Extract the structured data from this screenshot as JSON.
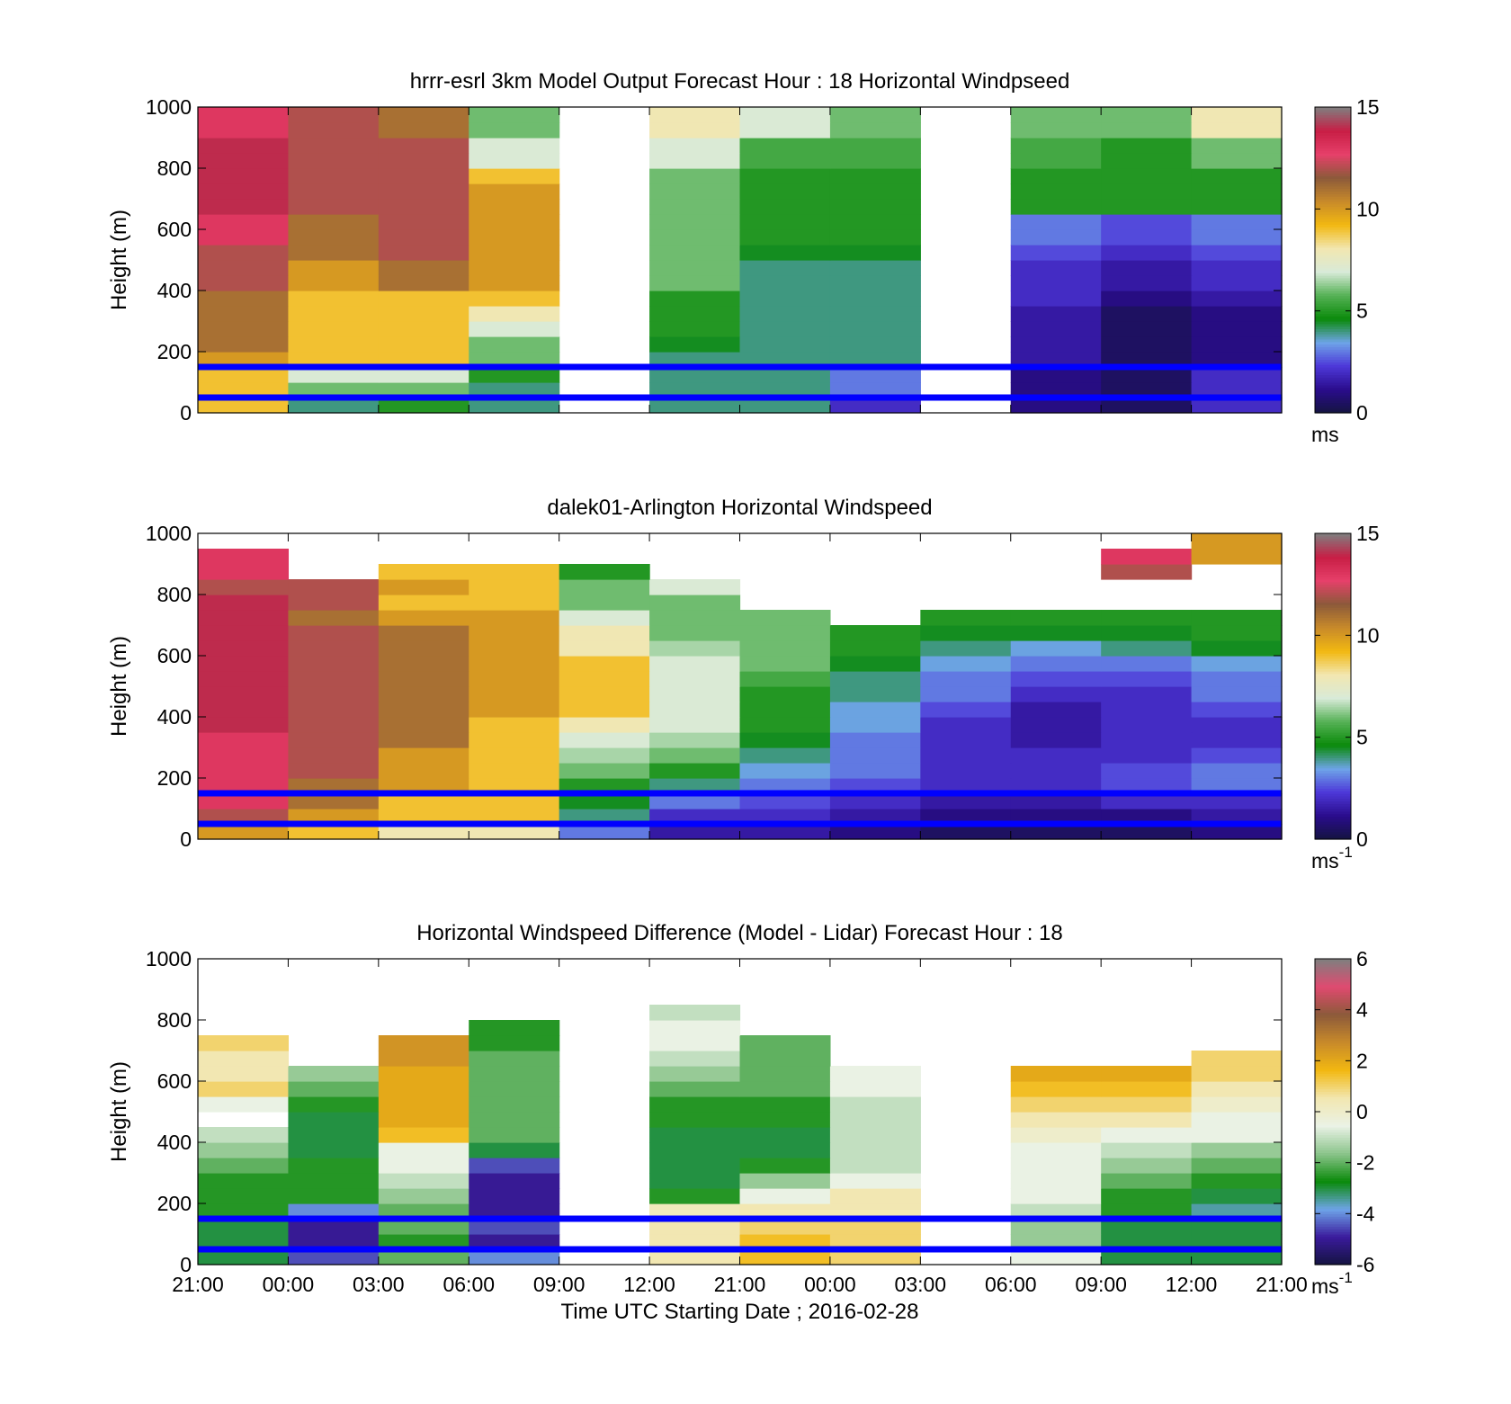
{
  "figure": {
    "panels": [
      {
        "title": "hrrr-esrl 3km Model Output   Forecast Hour : 18 Horizontal Windpseed",
        "ylabel": "Height (m)",
        "yticks": [
          "0",
          "200",
          "400",
          "600",
          "800",
          "1000"
        ],
        "colorbar_ticks": [
          "0",
          "5",
          "10",
          "15"
        ],
        "colorbar_unit": "ms",
        "colorbar_sup": ""
      },
      {
        "title": "dalek01-Arlington  Horizontal Windspeed",
        "ylabel": "Height (m)",
        "yticks": [
          "0",
          "200",
          "400",
          "600",
          "800",
          "1000"
        ],
        "colorbar_ticks": [
          "0",
          "5",
          "10",
          "15"
        ],
        "colorbar_unit": "ms",
        "colorbar_sup": "-1"
      },
      {
        "title": "Horizontal Windspeed Difference (Model - Lidar) Forecast Hour : 18",
        "ylabel": "Height (m)",
        "yticks": [
          "0",
          "200",
          "400",
          "600",
          "800",
          "1000"
        ],
        "colorbar_ticks": [
          "-6",
          "-4",
          "-2",
          "0",
          "2",
          "4",
          "6"
        ],
        "colorbar_unit": "ms",
        "colorbar_sup": "-1"
      }
    ],
    "xticks": [
      "21:00",
      "00:00",
      "03:00",
      "06:00",
      "09:00",
      "12:00",
      "21:00",
      "00:00",
      "03:00",
      "06:00",
      "09:00",
      "12:00",
      "21:00"
    ],
    "xlabel": "Time UTC  Starting Date ; 2016-02-28",
    "colors": {
      "reference_lines": "#0000ff",
      "colormap_speed": [
        "#141440",
        "#2a0c8c",
        "#4d38d8",
        "#6ea4e8",
        "#0a8a0a",
        "#55b155",
        "#d8ead8",
        "#f2e7b0",
        "#f2b811",
        "#c88a2a",
        "#8c5a3a",
        "#e6406a",
        "#c81e45",
        "#7f7f7f"
      ],
      "colormap_diff": [
        "#141440",
        "#3a1a9c",
        "#6ea4e8",
        "#0a8a0a",
        "#8bc48b",
        "#eaf2e6",
        "#f2e7b0",
        "#f2b811",
        "#c88a2a",
        "#8c5a3a",
        "#e04a70",
        "#7f7f7f"
      ]
    }
  },
  "chart_data": [
    {
      "type": "heatmap",
      "title": "hrrr-esrl 3km Model Output   Forecast Hour : 18 Horizontal Windpseed",
      "xlabel": "Time UTC  Starting Date ; 2016-02-28",
      "ylabel": "Height (m)",
      "ylim": [
        0,
        1000
      ],
      "x": [
        "21:00",
        "00:00",
        "03:00",
        "06:00",
        "09:00",
        "12:00",
        "21:00",
        "00:00",
        "03:00",
        "06:00",
        "09:00",
        "12:00"
      ],
      "y": [
        25,
        75,
        125,
        175,
        225,
        275,
        325,
        375,
        425,
        475,
        525,
        575,
        625,
        675,
        725,
        775,
        825,
        875,
        925,
        975
      ],
      "z": [
        [
          9,
          4,
          5,
          4,
          null,
          4,
          4,
          2,
          null,
          1,
          0.5,
          2
        ],
        [
          9,
          6,
          6,
          4,
          null,
          4,
          4,
          3,
          null,
          1,
          0.5,
          2
        ],
        [
          9,
          7,
          7,
          5,
          null,
          4,
          4,
          3,
          null,
          1,
          0.5,
          2
        ],
        [
          10,
          9,
          9,
          6,
          null,
          4,
          4,
          4,
          null,
          1.5,
          0.5,
          1
        ],
        [
          11,
          9,
          9,
          6,
          null,
          4.5,
          4,
          4,
          null,
          1.5,
          0.5,
          1
        ],
        [
          11,
          9,
          9,
          7,
          null,
          5,
          4,
          4,
          null,
          1.5,
          0.5,
          1
        ],
        [
          11,
          9,
          9,
          8,
          null,
          5,
          4,
          4,
          null,
          1.5,
          0.5,
          1
        ],
        [
          11,
          9,
          9,
          9,
          null,
          5,
          4,
          4,
          null,
          2,
          1,
          1.5
        ],
        [
          12,
          10,
          11,
          10,
          null,
          6,
          4,
          4,
          null,
          2,
          1.5,
          2
        ],
        [
          12,
          10,
          11,
          10,
          null,
          6,
          4,
          4,
          null,
          2,
          1.5,
          2
        ],
        [
          12,
          11,
          12,
          10,
          null,
          6,
          4.5,
          4.5,
          null,
          2.5,
          2,
          2.5
        ],
        [
          13,
          11,
          12,
          10,
          null,
          6,
          5,
          5,
          null,
          3,
          2.5,
          3
        ],
        [
          13,
          11,
          12,
          10,
          null,
          6,
          5,
          5,
          null,
          3,
          2.5,
          3
        ],
        [
          14,
          12,
          12,
          10,
          null,
          6,
          5,
          5,
          null,
          5,
          5,
          5
        ],
        [
          14,
          12,
          12,
          10,
          null,
          6,
          5,
          5,
          null,
          5,
          5,
          5
        ],
        [
          14,
          12,
          12,
          9,
          null,
          6,
          5,
          5,
          null,
          5,
          5,
          5
        ],
        [
          14,
          12,
          12,
          7,
          null,
          7,
          5.5,
          5.5,
          null,
          5.5,
          5,
          6
        ],
        [
          14,
          12,
          12,
          7,
          null,
          7,
          5.5,
          5.5,
          null,
          5.5,
          5,
          6
        ],
        [
          13,
          12,
          11,
          6,
          null,
          8,
          7,
          6,
          null,
          6,
          6,
          8
        ],
        [
          13,
          12,
          11,
          6,
          null,
          8,
          7,
          6,
          null,
          6,
          6,
          8
        ]
      ],
      "colorbar": {
        "min": 0,
        "max": 15,
        "ticks": [
          0,
          5,
          10,
          15
        ],
        "unit": "ms"
      },
      "reference_lines_height_m": [
        50,
        150
      ]
    },
    {
      "type": "heatmap",
      "title": "dalek01-Arlington  Horizontal Windspeed",
      "xlabel": "Time UTC  Starting Date ; 2016-02-28",
      "ylabel": "Height (m)",
      "ylim": [
        0,
        1000
      ],
      "x_ticks": [
        "21:00",
        "00:00",
        "03:00",
        "06:00",
        "09:00",
        "12:00",
        "21:00",
        "00:00",
        "03:00",
        "06:00",
        "09:00",
        "12:00",
        "21:00"
      ],
      "y": [
        25,
        75,
        125,
        175,
        225,
        275,
        325,
        375,
        425,
        475,
        525,
        575,
        625,
        675,
        725,
        775,
        825,
        875,
        925,
        975
      ],
      "z": [
        [
          10,
          9,
          8,
          8,
          3,
          1.5,
          1.5,
          1,
          0.5,
          0.5,
          0.5,
          1
        ],
        [
          12,
          10,
          9,
          9,
          4,
          2,
          2,
          1.5,
          1,
          1,
          1,
          1.5
        ],
        [
          13,
          11,
          9,
          9,
          4.5,
          3,
          2.5,
          2,
          1.5,
          1.5,
          2,
          2
        ],
        [
          13,
          11,
          10,
          9,
          5,
          4,
          3,
          2.5,
          2,
          2,
          2.5,
          3
        ],
        [
          13,
          12,
          10,
          9,
          6,
          5,
          3.5,
          3,
          2,
          2,
          2.5,
          3
        ],
        [
          13,
          12,
          10,
          9,
          6.5,
          6,
          4,
          3,
          2,
          2,
          2,
          2.5
        ],
        [
          13,
          12,
          11,
          9,
          7,
          6.5,
          4.5,
          3,
          2,
          1.5,
          2,
          2
        ],
        [
          14,
          12,
          11,
          9,
          8,
          7,
          5,
          3.5,
          2,
          1.5,
          2,
          2
        ],
        [
          14,
          12,
          11,
          10,
          9,
          7,
          5,
          3.5,
          2.5,
          1.5,
          2,
          2.5
        ],
        [
          14,
          12,
          11,
          10,
          9,
          7,
          5,
          4,
          3,
          2,
          2,
          3
        ],
        [
          14,
          12,
          11,
          10,
          9,
          7,
          5.5,
          4,
          3,
          2.5,
          2.5,
          3
        ],
        [
          14,
          12,
          11,
          10,
          9,
          7,
          6,
          4.5,
          3.5,
          3,
          3,
          3.5
        ],
        [
          14,
          12,
          11,
          10,
          8,
          6.5,
          6,
          5,
          4,
          3.5,
          4,
          4.5
        ],
        [
          14,
          12,
          11,
          10,
          8,
          6,
          6,
          5,
          4.5,
          4.5,
          4.5,
          5
        ],
        [
          14,
          11,
          10,
          10,
          7,
          6,
          6,
          null,
          5,
          5,
          5,
          5
        ],
        [
          14,
          12,
          9,
          9,
          6,
          6,
          null,
          null,
          null,
          null,
          null,
          null
        ],
        [
          12,
          12,
          10,
          9,
          6,
          7,
          null,
          null,
          null,
          null,
          null,
          null
        ],
        [
          13,
          null,
          9,
          9,
          5,
          null,
          null,
          null,
          null,
          null,
          12,
          null
        ],
        [
          13,
          null,
          null,
          null,
          null,
          null,
          null,
          null,
          null,
          null,
          13,
          10
        ],
        [
          null,
          null,
          null,
          null,
          null,
          null,
          null,
          null,
          null,
          null,
          null,
          10
        ]
      ],
      "colorbar": {
        "min": 0,
        "max": 15,
        "ticks": [
          0,
          5,
          10,
          15
        ],
        "unit": "ms-1"
      },
      "reference_lines_height_m": [
        50,
        150
      ]
    },
    {
      "type": "heatmap",
      "title": "Horizontal Windspeed Difference (Model - Lidar) Forecast Hour : 18",
      "xlabel": "Time UTC  Starting Date ; 2016-02-28",
      "ylabel": "Height (m)",
      "ylim": [
        0,
        1000
      ],
      "x": [
        "21:00",
        "00:00",
        "03:00",
        "06:00",
        "09:00",
        "12:00",
        "21:00",
        "00:00",
        "03:00",
        "06:00",
        "09:00",
        "12:00"
      ],
      "y": [
        25,
        75,
        125,
        175,
        225,
        275,
        325,
        375,
        425,
        475,
        525,
        575,
        625,
        675,
        725,
        775,
        825,
        875,
        925,
        975
      ],
      "z": [
        [
          -3,
          -4.5,
          -2,
          -4,
          null,
          0.5,
          1.5,
          1,
          null,
          -0.5,
          -3,
          -3
        ],
        [
          -3,
          -5,
          -2.5,
          -5,
          null,
          0.5,
          1.5,
          1,
          null,
          -1.5,
          -3,
          -3
        ],
        [
          -3,
          -5,
          -2,
          -4.5,
          null,
          0.5,
          1,
          1,
          null,
          -1.5,
          -3,
          -3
        ],
        [
          -2.5,
          -4,
          -2,
          -5,
          null,
          0.3,
          0.5,
          0.5,
          null,
          -1,
          -2.5,
          -3.5
        ],
        [
          -2.5,
          -2.5,
          -1.5,
          -5,
          null,
          -2.5,
          -0.5,
          0.5,
          null,
          -0.5,
          -2.5,
          -3
        ],
        [
          -2.5,
          -2.5,
          -1,
          -5,
          null,
          -3,
          -1.5,
          -0.5,
          null,
          -0.5,
          -2,
          -2.5
        ],
        [
          -2,
          -2.5,
          -0.5,
          -4.5,
          null,
          -3,
          -2.5,
          -1,
          null,
          -0.5,
          -1.5,
          -2
        ],
        [
          -1.5,
          -3,
          -0.5,
          -3,
          null,
          -3,
          -3,
          -1,
          null,
          -0.5,
          -1,
          -1.5
        ],
        [
          -1,
          -3,
          1.5,
          -2,
          null,
          -3,
          -3,
          -1,
          null,
          0,
          -0.5,
          -0.5
        ],
        [
          null,
          -3,
          2,
          -2,
          null,
          -2.5,
          -2.5,
          -1,
          null,
          0.5,
          0.5,
          -0.5
        ],
        [
          -0.5,
          -2.5,
          2,
          -2,
          null,
          -2.5,
          -2.5,
          -1,
          null,
          1,
          1,
          0
        ],
        [
          1,
          -2,
          2,
          -2,
          null,
          -2,
          -2,
          -0.5,
          null,
          1.5,
          1.5,
          0.5
        ],
        [
          0.5,
          -1.5,
          2,
          -2,
          null,
          -1.5,
          -2,
          -0.5,
          null,
          2,
          2,
          1
        ],
        [
          0.5,
          null,
          2.5,
          -2,
          null,
          -1,
          -2,
          null,
          null,
          null,
          null,
          1
        ],
        [
          1,
          null,
          2.5,
          -2.5,
          null,
          -0.5,
          -2,
          null,
          null,
          null,
          null,
          null
        ],
        [
          null,
          null,
          null,
          -2.5,
          null,
          -0.5,
          null,
          null,
          null,
          null,
          null,
          null
        ],
        [
          null,
          null,
          null,
          null,
          null,
          -1,
          null,
          null,
          null,
          null,
          null,
          null
        ],
        [
          null,
          null,
          null,
          null,
          null,
          null,
          null,
          null,
          null,
          null,
          null,
          null
        ],
        [
          null,
          null,
          null,
          null,
          null,
          null,
          null,
          null,
          null,
          null,
          null,
          null
        ],
        [
          null,
          null,
          null,
          null,
          null,
          null,
          null,
          null,
          null,
          null,
          null,
          null
        ]
      ],
      "colorbar": {
        "min": -6,
        "max": 6,
        "ticks": [
          -6,
          -4,
          -2,
          0,
          2,
          4,
          6
        ],
        "unit": "ms-1"
      },
      "reference_lines_height_m": [
        50,
        150
      ]
    }
  ]
}
